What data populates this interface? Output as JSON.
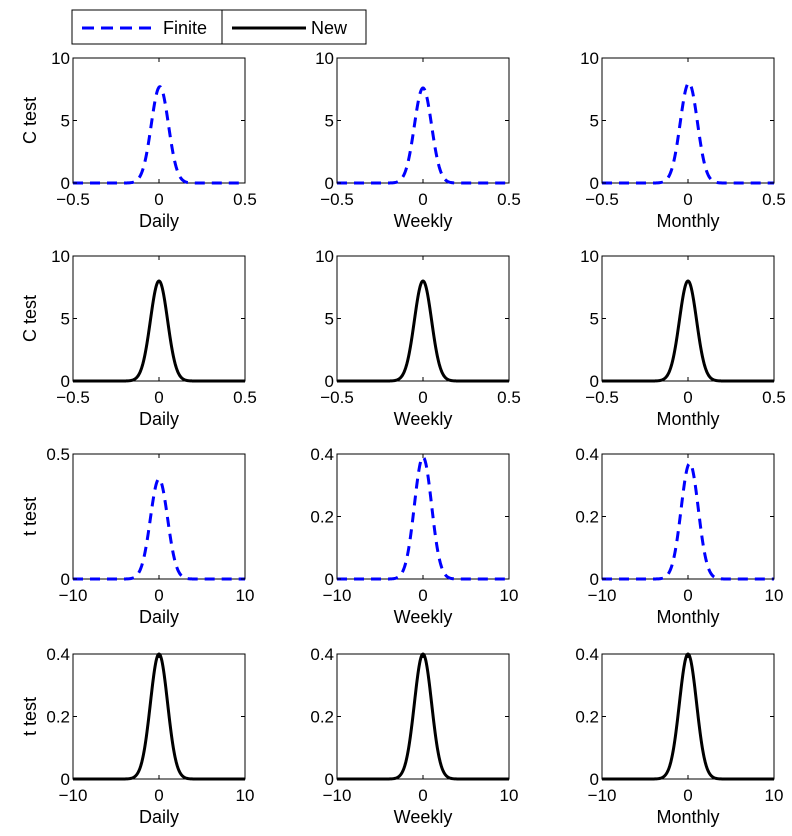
{
  "legend": {
    "items": [
      {
        "label": "Finite",
        "color": "#0000ff",
        "dash": true
      },
      {
        "label": "New",
        "color": "#000000",
        "dash": false
      }
    ]
  },
  "chart_data": [
    {
      "type": "line",
      "row": 0,
      "col": 0,
      "ylabel": "C test",
      "xlabel": "Daily",
      "xlim": [
        -0.5,
        0.5
      ],
      "ylim": [
        0,
        10
      ],
      "xticks": [
        -0.5,
        0,
        0.5
      ],
      "yticks": [
        0,
        5,
        10
      ],
      "xtick_labels": [
        "−0.5",
        "0",
        "0.5"
      ],
      "ytick_labels": [
        "0",
        "5",
        "10"
      ],
      "series": [
        {
          "style": "dashed",
          "color": "#0000ff",
          "peak": 7.7,
          "center": 0.005,
          "sigma": 0.05,
          "x_start": -0.5,
          "x_end": 0.5
        }
      ]
    },
    {
      "type": "line",
      "row": 0,
      "col": 1,
      "ylabel": "",
      "xlabel": "Weekly",
      "xlim": [
        -0.5,
        0.5
      ],
      "ylim": [
        0,
        10
      ],
      "xticks": [
        -0.5,
        0,
        0.5
      ],
      "yticks": [
        0,
        5,
        10
      ],
      "xtick_labels": [
        "−0.5",
        "0",
        "0.5"
      ],
      "ytick_labels": [
        "0",
        "5",
        "10"
      ],
      "series": [
        {
          "style": "dashed",
          "color": "#0000ff",
          "peak": 7.6,
          "center": 0.0,
          "sigma": 0.05,
          "x_start": -0.5,
          "x_end": 0.5
        }
      ]
    },
    {
      "type": "line",
      "row": 0,
      "col": 2,
      "ylabel": "",
      "xlabel": "Monthly",
      "xlim": [
        -0.5,
        0.5
      ],
      "ylim": [
        0,
        10
      ],
      "xticks": [
        -0.5,
        0,
        0.5
      ],
      "yticks": [
        0,
        5,
        10
      ],
      "xtick_labels": [
        "−0.5",
        "0",
        "0.5"
      ],
      "ytick_labels": [
        "0",
        "5",
        "10"
      ],
      "series": [
        {
          "style": "dashed",
          "color": "#0000ff",
          "peak": 8.0,
          "center": 0.005,
          "sigma": 0.05,
          "x_start": -0.5,
          "x_end": 0.5
        }
      ]
    },
    {
      "type": "line",
      "row": 1,
      "col": 0,
      "ylabel": "C test",
      "xlabel": "Daily",
      "xlim": [
        -0.5,
        0.5
      ],
      "ylim": [
        0,
        10
      ],
      "xticks": [
        -0.5,
        0,
        0.5
      ],
      "yticks": [
        0,
        5,
        10
      ],
      "xtick_labels": [
        "−0.5",
        "0",
        "0.5"
      ],
      "ytick_labels": [
        "0",
        "5",
        "10"
      ],
      "series": [
        {
          "style": "solid",
          "color": "#000000",
          "peak": 8.0,
          "center": 0.0,
          "sigma": 0.05,
          "x_start": -0.5,
          "x_end": 0.5
        }
      ]
    },
    {
      "type": "line",
      "row": 1,
      "col": 1,
      "ylabel": "",
      "xlabel": "Weekly",
      "xlim": [
        -0.5,
        0.5
      ],
      "ylim": [
        0,
        10
      ],
      "xticks": [
        -0.5,
        0,
        0.5
      ],
      "yticks": [
        0,
        5,
        10
      ],
      "xtick_labels": [
        "−0.5",
        "0",
        "0.5"
      ],
      "ytick_labels": [
        "0",
        "5",
        "10"
      ],
      "series": [
        {
          "style": "solid",
          "color": "#000000",
          "peak": 8.0,
          "center": 0.0,
          "sigma": 0.05,
          "x_start": -0.5,
          "x_end": 0.5
        }
      ]
    },
    {
      "type": "line",
      "row": 1,
      "col": 2,
      "ylabel": "",
      "xlabel": "Monthly",
      "xlim": [
        -0.5,
        0.5
      ],
      "ylim": [
        0,
        10
      ],
      "xticks": [
        -0.5,
        0,
        0.5
      ],
      "yticks": [
        0,
        5,
        10
      ],
      "xtick_labels": [
        "−0.5",
        "0",
        "0.5"
      ],
      "ytick_labels": [
        "0",
        "5",
        "10"
      ],
      "series": [
        {
          "style": "solid",
          "color": "#000000",
          "peak": 8.0,
          "center": 0.0,
          "sigma": 0.05,
          "x_start": -0.5,
          "x_end": 0.5
        }
      ]
    },
    {
      "type": "line",
      "row": 2,
      "col": 0,
      "ylabel": "t test",
      "xlabel": "Daily",
      "xlim": [
        -10,
        10
      ],
      "ylim": [
        0,
        0.5
      ],
      "xticks": [
        -10,
        0,
        10
      ],
      "yticks": [
        0,
        0.5
      ],
      "xtick_labels": [
        "−10",
        "0",
        "10"
      ],
      "ytick_labels": [
        "0",
        "0.5"
      ],
      "series": [
        {
          "style": "dashed",
          "color": "#0000ff",
          "peak": 0.4,
          "center": 0.0,
          "sigma": 1.0,
          "x_start": -10,
          "x_end": 10
        }
      ]
    },
    {
      "type": "line",
      "row": 2,
      "col": 1,
      "ylabel": "",
      "xlabel": "Weekly",
      "xlim": [
        -10,
        10
      ],
      "ylim": [
        0,
        0.4
      ],
      "xticks": [
        -10,
        0,
        10
      ],
      "yticks": [
        0,
        0.2,
        0.4
      ],
      "xtick_labels": [
        "−10",
        "0",
        "10"
      ],
      "ytick_labels": [
        "0",
        "0.2",
        "0.4"
      ],
      "series": [
        {
          "style": "dashed",
          "color": "#0000ff",
          "peak": 0.39,
          "center": 0.0,
          "sigma": 1.0,
          "x_start": -10,
          "x_end": 10
        }
      ]
    },
    {
      "type": "line",
      "row": 2,
      "col": 2,
      "ylabel": "",
      "xlabel": "Monthly",
      "xlim": [
        -10,
        10
      ],
      "ylim": [
        0,
        0.4
      ],
      "xticks": [
        -10,
        0,
        10
      ],
      "yticks": [
        0,
        0.2,
        0.4
      ],
      "xtick_labels": [
        "−10",
        "0",
        "10"
      ],
      "ytick_labels": [
        "0",
        "0.2",
        "0.4"
      ],
      "series": [
        {
          "style": "dashed",
          "color": "#0000ff",
          "peak": 0.37,
          "center": 0.2,
          "sigma": 1.0,
          "x_start": -10,
          "x_end": 10
        }
      ]
    },
    {
      "type": "line",
      "row": 3,
      "col": 0,
      "ylabel": "t test",
      "xlabel": "Daily",
      "xlim": [
        -10,
        10
      ],
      "ylim": [
        0,
        0.4
      ],
      "xticks": [
        -10,
        0,
        10
      ],
      "yticks": [
        0,
        0.2,
        0.4
      ],
      "xtick_labels": [
        "−10",
        "0",
        "10"
      ],
      "ytick_labels": [
        "0",
        "0.2",
        "0.4"
      ],
      "series": [
        {
          "style": "solid",
          "color": "#000000",
          "peak": 0.4,
          "center": 0.0,
          "sigma": 1.0,
          "x_start": -10,
          "x_end": 10
        }
      ]
    },
    {
      "type": "line",
      "row": 3,
      "col": 1,
      "ylabel": "",
      "xlabel": "Weekly",
      "xlim": [
        -10,
        10
      ],
      "ylim": [
        0,
        0.4
      ],
      "xticks": [
        -10,
        0,
        10
      ],
      "yticks": [
        0,
        0.2,
        0.4
      ],
      "xtick_labels": [
        "−10",
        "0",
        "10"
      ],
      "ytick_labels": [
        "0",
        "0.2",
        "0.4"
      ],
      "series": [
        {
          "style": "solid",
          "color": "#000000",
          "peak": 0.4,
          "center": 0.0,
          "sigma": 1.0,
          "x_start": -10,
          "x_end": 10
        }
      ]
    },
    {
      "type": "line",
      "row": 3,
      "col": 2,
      "ylabel": "",
      "xlabel": "Monthly",
      "xlim": [
        -10,
        10
      ],
      "ylim": [
        0,
        0.4
      ],
      "xticks": [
        -10,
        0,
        10
      ],
      "yticks": [
        0,
        0.2,
        0.4
      ],
      "xtick_labels": [
        "−10",
        "0",
        "10"
      ],
      "ytick_labels": [
        "0",
        "0.2",
        "0.4"
      ],
      "series": [
        {
          "style": "solid",
          "color": "#000000",
          "peak": 0.4,
          "center": 0.0,
          "sigma": 1.0,
          "x_start": -10,
          "x_end": 10
        }
      ]
    }
  ]
}
